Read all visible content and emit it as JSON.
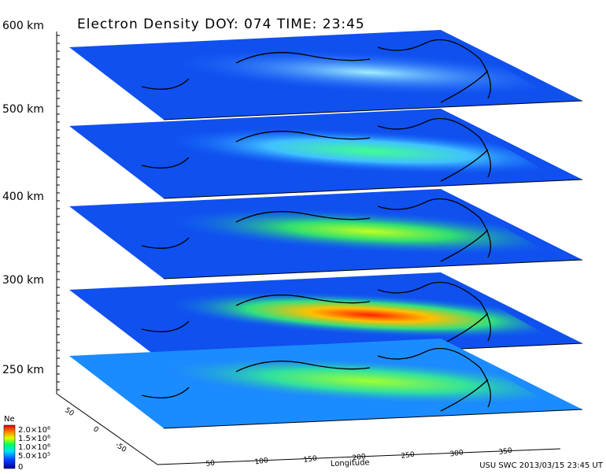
{
  "title": "Electron Density DOY: 074 TIME: 23:45",
  "altitude_labels": [
    "600 km",
    "500 km",
    "400 km",
    "300 km",
    "250 km"
  ],
  "colorbar": {
    "title": "Ne",
    "labels": [
      "2.0×10⁶",
      "1.5×10⁶",
      "1.0×10⁶",
      "5.0×10⁵",
      "0"
    ]
  },
  "longitude_axis": {
    "title": "Longitude",
    "ticks": [
      "50",
      "100",
      "150",
      "200",
      "250",
      "300",
      "350"
    ]
  },
  "latitude_axis": {
    "ticks": [
      "50",
      "0",
      "-50"
    ]
  },
  "footer": "USU SWC 2013/03/15 23:45 UT"
}
